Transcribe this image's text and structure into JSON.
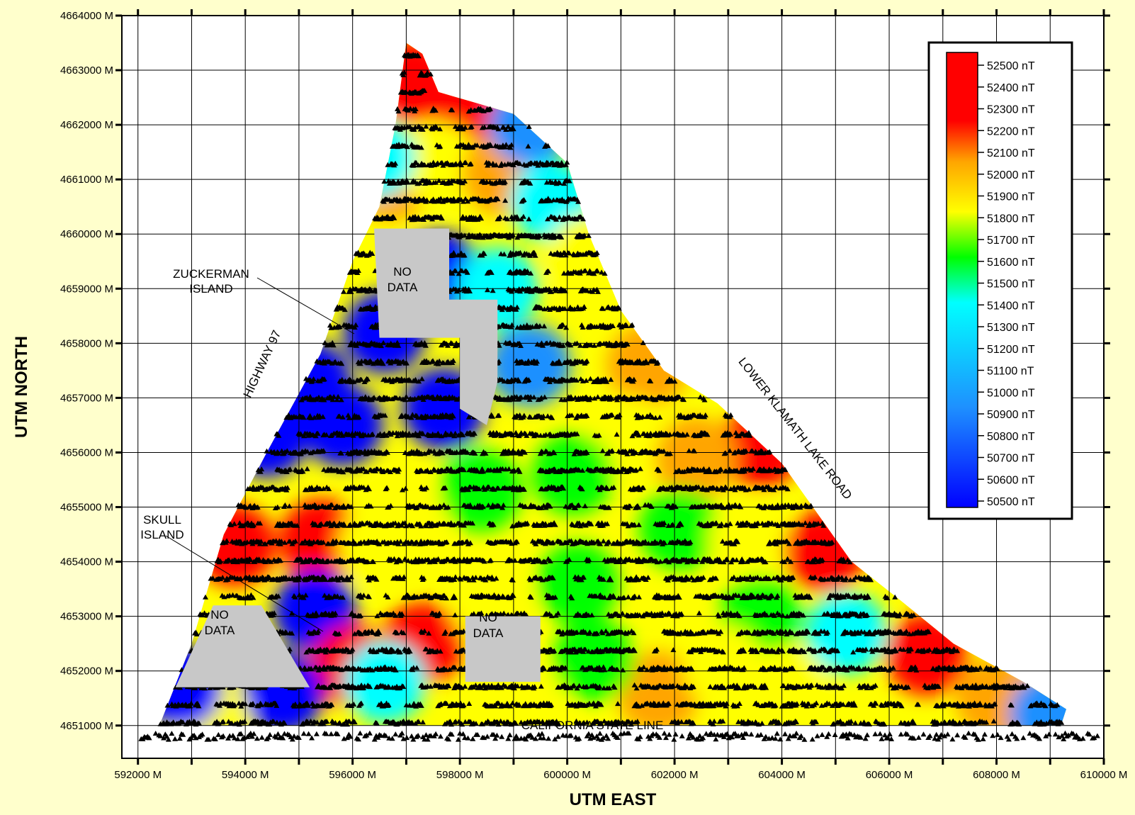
{
  "chart_data": {
    "type": "heatmap",
    "title": "",
    "xlabel": "UTM EAST",
    "ylabel": "UTM NORTH",
    "xlim": [
      591700,
      610000
    ],
    "ylim": [
      4650400,
      4664000
    ],
    "x_ticks": [
      {
        "value": 592000,
        "label": "592000 M"
      },
      {
        "value": 594000,
        "label": "594000 M"
      },
      {
        "value": 596000,
        "label": "596000 M"
      },
      {
        "value": 598000,
        "label": "598000 M"
      },
      {
        "value": 600000,
        "label": "600000 M"
      },
      {
        "value": 602000,
        "label": "602000 M"
      },
      {
        "value": 604000,
        "label": "604000 M"
      },
      {
        "value": 606000,
        "label": "606000 M"
      },
      {
        "value": 608000,
        "label": "608000 M"
      },
      {
        "value": 610000,
        "label": "610000 M"
      }
    ],
    "y_ticks": [
      {
        "value": 4651000,
        "label": "4651000 M"
      },
      {
        "value": 4652000,
        "label": "4652000 M"
      },
      {
        "value": 4653000,
        "label": "4653000 M"
      },
      {
        "value": 4654000,
        "label": "4654000 M"
      },
      {
        "value": 4655000,
        "label": "4655000 M"
      },
      {
        "value": 4656000,
        "label": "4656000 M"
      },
      {
        "value": 4657000,
        "label": "4657000 M"
      },
      {
        "value": 4658000,
        "label": "4658000 M"
      },
      {
        "value": 4659000,
        "label": "4659000 M"
      },
      {
        "value": 4660000,
        "label": "4660000 M"
      },
      {
        "value": 4661000,
        "label": "4661000 M"
      },
      {
        "value": 4662000,
        "label": "4662000 M"
      },
      {
        "value": 4663000,
        "label": "4663000 M"
      },
      {
        "value": 4664000,
        "label": "4664000 M"
      }
    ],
    "grid": true,
    "legend": {
      "placement": "top-right",
      "unit": "nT",
      "min": 50500,
      "max": 52500,
      "labels": [
        "52500 nT",
        "52400 nT",
        "52300 nT",
        "52200 nT",
        "52100 nT",
        "52000 nT",
        "51900 nT",
        "51800 nT",
        "51700 nT",
        "51600 nT",
        "51500 nT",
        "51400 nT",
        "51300 nT",
        "51200 nT",
        "51100 nT",
        "51000 nT",
        "50900 nT",
        "50800 nT",
        "50700 nT",
        "50600 nT",
        "50500 nT"
      ],
      "colors": [
        "#0000ff",
        "#1e90ff",
        "#00ffff",
        "#00ff00",
        "#ffff00",
        "#ffa500",
        "#ff0000"
      ]
    },
    "survey_boundary": [
      [
        592400,
        4651000
      ],
      [
        593000,
        4652500
      ],
      [
        593600,
        4654500
      ],
      [
        594400,
        4656000
      ],
      [
        595400,
        4657800
      ],
      [
        596000,
        4659500
      ],
      [
        596500,
        4660500
      ],
      [
        596800,
        4662000
      ],
      [
        597000,
        4663500
      ],
      [
        597300,
        4663300
      ],
      [
        597600,
        4662600
      ],
      [
        598300,
        4662400
      ],
      [
        599000,
        4662200
      ],
      [
        600000,
        4661300
      ],
      [
        600400,
        4660000
      ],
      [
        601000,
        4658600
      ],
      [
        601800,
        4657500
      ],
      [
        602800,
        4656900
      ],
      [
        604000,
        4655800
      ],
      [
        605300,
        4654000
      ],
      [
        606200,
        4653300
      ],
      [
        607200,
        4652500
      ],
      [
        608500,
        4651800
      ],
      [
        609300,
        4651300
      ],
      [
        609200,
        4651000
      ]
    ],
    "anomalies": [
      {
        "x": 597100,
        "y": 4662800,
        "value": 52500
      },
      {
        "x": 598300,
        "y": 4662100,
        "value": 52400
      },
      {
        "x": 596700,
        "y": 4661000,
        "value": 52300
      },
      {
        "x": 597600,
        "y": 4661300,
        "value": 51800
      },
      {
        "x": 598800,
        "y": 4661100,
        "value": 52300
      },
      {
        "x": 599300,
        "y": 4662000,
        "value": 50700
      },
      {
        "x": 599700,
        "y": 4660600,
        "value": 51200
      },
      {
        "x": 596400,
        "y": 4661400,
        "value": 51200
      },
      {
        "x": 597600,
        "y": 4659300,
        "value": 50600
      },
      {
        "x": 598700,
        "y": 4659000,
        "value": 51000
      },
      {
        "x": 596600,
        "y": 4658200,
        "value": 50600
      },
      {
        "x": 595200,
        "y": 4657300,
        "value": 50500
      },
      {
        "x": 594400,
        "y": 4656300,
        "value": 50500
      },
      {
        "x": 595800,
        "y": 4656500,
        "value": 50600
      },
      {
        "x": 597700,
        "y": 4656800,
        "value": 50500
      },
      {
        "x": 599300,
        "y": 4657600,
        "value": 50700
      },
      {
        "x": 600400,
        "y": 4659600,
        "value": 51900
      },
      {
        "x": 601500,
        "y": 4657600,
        "value": 52300
      },
      {
        "x": 601100,
        "y": 4656300,
        "value": 51800
      },
      {
        "x": 600100,
        "y": 4655600,
        "value": 51500
      },
      {
        "x": 598400,
        "y": 4655300,
        "value": 51600
      },
      {
        "x": 603600,
        "y": 4656100,
        "value": 52500
      },
      {
        "x": 602400,
        "y": 4655900,
        "value": 52000
      },
      {
        "x": 602100,
        "y": 4654600,
        "value": 51600
      },
      {
        "x": 603400,
        "y": 4654400,
        "value": 51700
      },
      {
        "x": 604800,
        "y": 4654200,
        "value": 52500
      },
      {
        "x": 603600,
        "y": 4653000,
        "value": 51500
      },
      {
        "x": 605200,
        "y": 4652700,
        "value": 51300
      },
      {
        "x": 606700,
        "y": 4652300,
        "value": 52400
      },
      {
        "x": 608000,
        "y": 4651500,
        "value": 52000
      },
      {
        "x": 609000,
        "y": 4651200,
        "value": 50900
      },
      {
        "x": 593800,
        "y": 4654300,
        "value": 52500
      },
      {
        "x": 595400,
        "y": 4654400,
        "value": 52400
      },
      {
        "x": 596500,
        "y": 4654300,
        "value": 51800
      },
      {
        "x": 595300,
        "y": 4653100,
        "value": 50600
      },
      {
        "x": 596000,
        "y": 4652100,
        "value": 52500
      },
      {
        "x": 597300,
        "y": 4652500,
        "value": 52500
      },
      {
        "x": 596600,
        "y": 4651800,
        "value": 51200
      },
      {
        "x": 594700,
        "y": 4651600,
        "value": 50500
      },
      {
        "x": 593300,
        "y": 4651200,
        "value": 51800
      },
      {
        "x": 592800,
        "y": 4651700,
        "value": 50600
      },
      {
        "x": 598600,
        "y": 4653200,
        "value": 51800
      },
      {
        "x": 600200,
        "y": 4653600,
        "value": 51500
      },
      {
        "x": 601700,
        "y": 4651600,
        "value": 52000
      },
      {
        "x": 600500,
        "y": 4652200,
        "value": 51600
      },
      {
        "x": 599200,
        "y": 4651400,
        "value": 51800
      },
      {
        "x": 602900,
        "y": 4652100,
        "value": 51700
      },
      {
        "x": 604100,
        "y": 4651700,
        "value": 51800
      },
      {
        "x": 597000,
        "y": 4654700,
        "value": 51700
      }
    ],
    "no_data_areas": [
      {
        "label_lines": [
          "NO",
          "DATA"
        ],
        "polygon": [
          [
            592700,
            4651700
          ],
          [
            593400,
            4653200
          ],
          [
            594300,
            4653200
          ],
          [
            595200,
            4651700
          ]
        ]
      },
      {
        "label_lines": [
          "NO",
          "DATA"
        ],
        "polygon": [
          [
            596400,
            4660100
          ],
          [
            597800,
            4660100
          ],
          [
            597800,
            4658800
          ],
          [
            598700,
            4658800
          ],
          [
            598700,
            4657300
          ],
          [
            598500,
            4656500
          ],
          [
            598000,
            4656800
          ],
          [
            598000,
            4658100
          ],
          [
            596500,
            4658100
          ]
        ]
      },
      {
        "label_lines": [
          "NO",
          "DATA"
        ],
        "polygon": [
          [
            598100,
            4653000
          ],
          [
            599500,
            4653000
          ],
          [
            599500,
            4651800
          ],
          [
            598100,
            4651800
          ]
        ]
      }
    ],
    "annotations": [
      {
        "lines": [
          "ZUCKERMAN",
          "ISLAND"
        ]
      },
      {
        "lines": [
          "SKULL",
          "ISLAND"
        ]
      },
      {
        "lines": [
          "HIGHWAY 97"
        ]
      },
      {
        "lines": [
          "LOWER KLAMATH LAKE ROAD"
        ]
      },
      {
        "lines": [
          "CALIFORNIA STATE LINE"
        ]
      }
    ]
  }
}
